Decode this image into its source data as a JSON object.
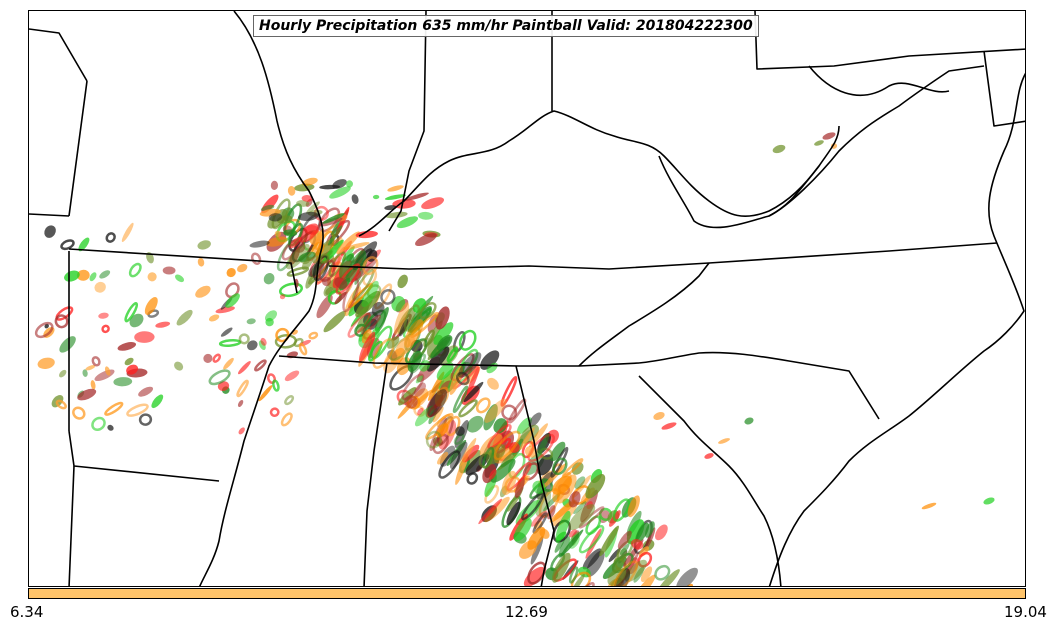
{
  "title": "Hourly Precipitation 635 mm/hr Paintball Valid: 201804222300",
  "colorbar": {
    "color": "#ffc46a",
    "tick_labels": [
      "6.34",
      "12.69",
      "19.04"
    ]
  },
  "colors": {
    "state_borders": "#000000",
    "member_palette": [
      "#ff2020",
      "#ff8c00",
      "#ffa030",
      "#228b22",
      "#20d020",
      "#6b8e23",
      "#a52a2a",
      "#1a1a1a"
    ]
  },
  "map": {
    "projection": "regional (southeastern United States)",
    "legend": "none"
  }
}
